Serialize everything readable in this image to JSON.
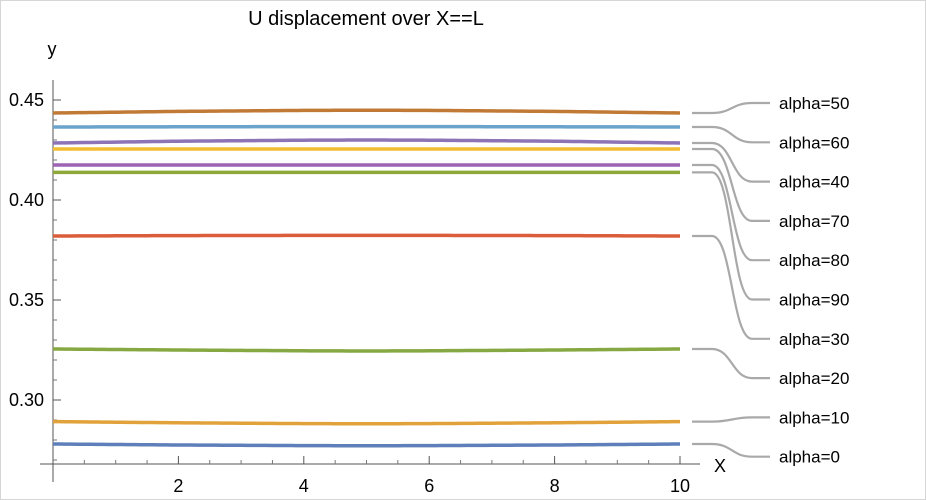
{
  "chart_data": {
    "type": "line",
    "title": "U displacement over X==L",
    "xlabel": "X",
    "ylabel": "y",
    "xlim": [
      0,
      10
    ],
    "ylim": [
      0.268,
      0.46
    ],
    "x_ticks": [
      2,
      4,
      6,
      8,
      10
    ],
    "y_ticks": [
      0.3,
      0.35,
      0.4,
      0.45
    ],
    "y_tick_labels": [
      "0.30",
      "0.35",
      "0.40",
      "0.45"
    ],
    "grid": false,
    "legend_placement": "right",
    "x": [
      0,
      2,
      4,
      5,
      6,
      8,
      10
    ],
    "series": [
      {
        "name": "alpha=50",
        "color": "#c07a35",
        "values": [
          0.4435,
          0.4443,
          0.4448,
          0.4449,
          0.4448,
          0.4443,
          0.4435
        ]
      },
      {
        "name": "alpha=60",
        "color": "#6aa3cc",
        "values": [
          0.4365,
          0.4366,
          0.4367,
          0.4367,
          0.4367,
          0.4366,
          0.4365
        ]
      },
      {
        "name": "alpha=40",
        "color": "#8c74b7",
        "values": [
          0.4285,
          0.4294,
          0.4299,
          0.43,
          0.4299,
          0.4294,
          0.4285
        ]
      },
      {
        "name": "alpha=70",
        "color": "#f2bd33",
        "values": [
          0.4255,
          0.4255,
          0.4255,
          0.4255,
          0.4255,
          0.4255,
          0.4255
        ]
      },
      {
        "name": "alpha=80",
        "color": "#9c64b3",
        "values": [
          0.4175,
          0.4175,
          0.4175,
          0.4175,
          0.4175,
          0.4175,
          0.4175
        ]
      },
      {
        "name": "alpha=90",
        "color": "#8ea839",
        "values": [
          0.4138,
          0.4138,
          0.4138,
          0.4138,
          0.4138,
          0.4138,
          0.4138
        ]
      },
      {
        "name": "alpha=30",
        "color": "#dc5d3c",
        "values": [
          0.382,
          0.3822,
          0.3823,
          0.3823,
          0.3823,
          0.3822,
          0.382
        ]
      },
      {
        "name": "alpha=20",
        "color": "#86a842",
        "values": [
          0.3255,
          0.325,
          0.3246,
          0.3245,
          0.3246,
          0.325,
          0.3255
        ]
      },
      {
        "name": "alpha=10",
        "color": "#e2a23b",
        "values": [
          0.2892,
          0.2886,
          0.2882,
          0.2881,
          0.2882,
          0.2886,
          0.2892
        ]
      },
      {
        "name": "alpha=0",
        "color": "#5f7fba",
        "values": [
          0.278,
          0.2775,
          0.2772,
          0.2771,
          0.2772,
          0.2775,
          0.278
        ]
      }
    ],
    "legend_line_color": "#a9a9a9"
  }
}
